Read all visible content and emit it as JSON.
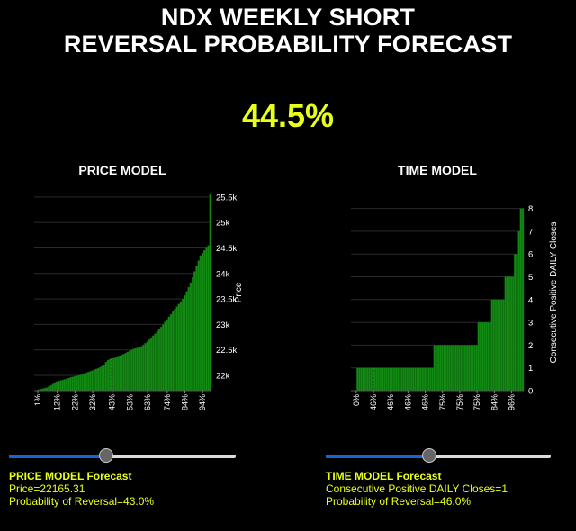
{
  "title_line1": "NDX WEEKLY SHORT",
  "title_line2": "REVERSAL PROBABILITY FORECAST",
  "overall_probability": "44.5%",
  "colors": {
    "accent": "#e8ff1a",
    "bar": "#138a13",
    "bar_edge": "#0b5e0b",
    "slider_fill": "#1565d8"
  },
  "price_model": {
    "title": "PRICE MODEL",
    "forecast_label": "PRICE MODEL Forecast",
    "value_text": "Price=22165.31",
    "probability_text": "Probability of Reversal=43.0%",
    "slider_value": 0.43
  },
  "time_model": {
    "title": "TIME MODEL",
    "forecast_label": "TIME MODEL Forecast",
    "value_text": "Consecutive Positive DAILY Closes=1",
    "probability_text": "Probability of Reversal=46.0%",
    "slider_value": 0.46
  },
  "chart_data": [
    {
      "type": "bar",
      "title": "PRICE MODEL",
      "ylabel": "Price",
      "ylim": [
        21700,
        25550
      ],
      "yticks": [
        22000,
        22500,
        23000,
        23500,
        24000,
        24500,
        25000,
        25500
      ],
      "ytick_labels": [
        "22k",
        "22.5k",
        "23k",
        "23.5k",
        "24k",
        "24.5k",
        "25k",
        "25.5k"
      ],
      "xtick_labels": [
        "1%",
        "12%",
        "22%",
        "32%",
        "43%",
        "53%",
        "63%",
        "74%",
        "84%",
        "94%"
      ],
      "xtick_percentiles": [
        1,
        12,
        22,
        32,
        43,
        53,
        63,
        74,
        84,
        94
      ],
      "marker_percentile": 43,
      "values": [
        21700,
        21710,
        21720,
        21730,
        21740,
        21750,
        21760,
        21780,
        21800,
        21830,
        21860,
        21880,
        21890,
        21900,
        21910,
        21920,
        21930,
        21945,
        21960,
        21970,
        21980,
        21990,
        22000,
        22010,
        22020,
        22035,
        22050,
        22065,
        22080,
        22095,
        22110,
        22125,
        22140,
        22160,
        22180,
        22200,
        22260,
        22300,
        22320,
        22330,
        22340,
        22350,
        22360,
        22380,
        22400,
        22420,
        22440,
        22460,
        22480,
        22500,
        22520,
        22530,
        22540,
        22550,
        22570,
        22600,
        22630,
        22660,
        22700,
        22740,
        22780,
        22820,
        22860,
        22900,
        22950,
        23000,
        23050,
        23100,
        23150,
        23200,
        23250,
        23300,
        23350,
        23400,
        23450,
        23500,
        23570,
        23650,
        23730,
        23820,
        23920,
        24040,
        24150,
        24250,
        24350,
        24400,
        24450,
        24500,
        24550,
        25550
      ]
    },
    {
      "type": "bar",
      "title": "TIME MODEL",
      "ylabel": "Consecutive Positive DAILY Closes",
      "ylim": [
        0,
        8.3
      ],
      "yticks": [
        0,
        1,
        2,
        3,
        4,
        5,
        6,
        7,
        8
      ],
      "ytick_labels": [
        "0",
        "1",
        "2",
        "3",
        "4",
        "5",
        "6",
        "7",
        "8"
      ],
      "xtick_labels": [
        "0%",
        "46%",
        "46%",
        "46%",
        "46%",
        "75%",
        "75%",
        "75%",
        "84%",
        "96%"
      ],
      "marker_index": 11,
      "values": [
        0,
        0,
        0,
        1,
        1,
        1,
        1,
        1,
        1,
        1,
        1,
        1,
        1,
        1,
        1,
        1,
        1,
        1,
        1,
        1,
        1,
        1,
        1,
        1,
        1,
        1,
        1,
        1,
        1,
        1,
        1,
        1,
        1,
        1,
        1,
        1,
        1,
        1,
        1,
        1,
        1,
        1,
        1,
        2,
        2,
        2,
        2,
        2,
        2,
        2,
        2,
        2,
        2,
        2,
        2,
        2,
        2,
        2,
        2,
        2,
        2,
        2,
        2,
        2,
        2,
        2,
        3,
        3,
        3,
        3,
        3,
        3,
        3,
        4,
        4,
        4,
        4,
        4,
        4,
        4,
        5,
        5,
        5,
        5,
        5,
        6,
        6,
        7,
        8,
        8
      ]
    }
  ]
}
